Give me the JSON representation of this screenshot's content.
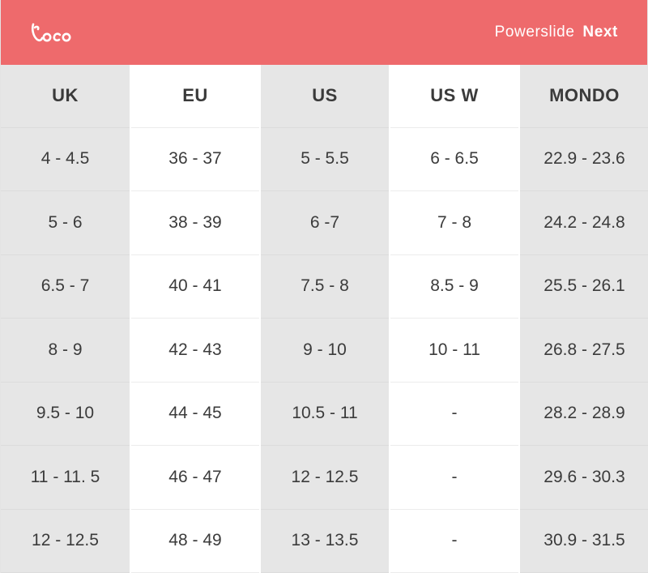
{
  "header": {
    "brand": "Powerslide",
    "model": "Next",
    "logo_icon": "loco-logo-icon",
    "background_color": "#ee6a6c"
  },
  "table": {
    "columns": [
      "UK",
      "EU",
      "US",
      "US W",
      "MONDO"
    ],
    "rows": [
      [
        "4 - 4.5",
        "36 - 37",
        "5 - 5.5",
        "6 - 6.5",
        "22.9 - 23.6"
      ],
      [
        "5 - 6",
        "38 - 39",
        "6 -7",
        "7 - 8",
        "24.2 - 24.8"
      ],
      [
        "6.5 - 7",
        "40 - 41",
        "7.5 - 8",
        "8.5 - 9",
        "25.5 - 26.1"
      ],
      [
        "8 - 9",
        "42 - 43",
        "9 - 10",
        "10 - 11",
        "26.8 - 27.5"
      ],
      [
        "9.5 - 10",
        "44 - 45",
        "10.5 - 11",
        "-",
        "28.2 - 28.9"
      ],
      [
        "11 - 11. 5",
        "46 - 47",
        "12 - 12.5",
        "-",
        "29.6 - 30.3"
      ],
      [
        "12 - 12.5",
        "48 - 49",
        "13 - 13.5",
        "-",
        "30.9 - 31.5"
      ]
    ],
    "shade_color": "#e6e6e6"
  }
}
